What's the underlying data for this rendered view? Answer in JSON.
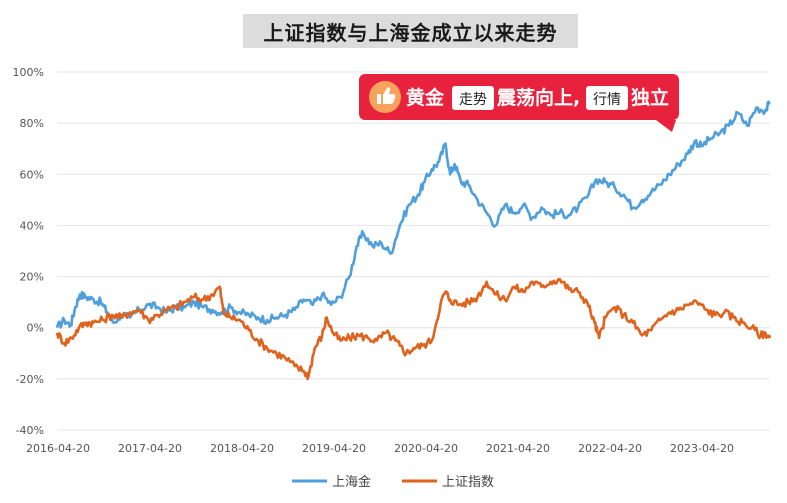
{
  "title": "上证指数与上海金成立以来走势",
  "callout": {
    "part1": "黄金",
    "pill1": "走势",
    "part2": "震荡向上,",
    "pill2": "行情",
    "part3": "独立",
    "colors": {
      "banner": "#e8223d",
      "pill_bg": "#ffffff",
      "icon": "#f7a35c"
    }
  },
  "chart_data": {
    "type": "line",
    "title": "上证指数与上海金成立以来走势",
    "xlabel": "",
    "ylabel": "",
    "ylim": [
      -40,
      100
    ],
    "yticks": [
      "100%",
      "80%",
      "60%",
      "40%",
      "20%",
      "0%",
      "-20%",
      "-40%"
    ],
    "xticks": [
      "2016-04-20",
      "2017-04-20",
      "2018-04-20",
      "2019-04-20",
      "2020-04-20",
      "2021-04-20",
      "2022-04-20",
      "2023-04-20"
    ],
    "x_range": [
      2016.3,
      2024.1
    ],
    "grid": true,
    "legend": "bottom",
    "series": [
      {
        "name": "上海金",
        "color": "#4e9fdc",
        "points": [
          [
            2016.3,
            0
          ],
          [
            2016.38,
            3
          ],
          [
            2016.45,
            1
          ],
          [
            2016.5,
            8
          ],
          [
            2016.55,
            13
          ],
          [
            2016.62,
            12
          ],
          [
            2016.7,
            11
          ],
          [
            2016.78,
            10
          ],
          [
            2016.85,
            6
          ],
          [
            2016.92,
            2
          ],
          [
            2017.0,
            5
          ],
          [
            2017.1,
            4
          ],
          [
            2017.2,
            7
          ],
          [
            2017.3,
            9
          ],
          [
            2017.4,
            8
          ],
          [
            2017.5,
            6
          ],
          [
            2017.6,
            8
          ],
          [
            2017.7,
            8
          ],
          [
            2017.8,
            10
          ],
          [
            2017.9,
            8
          ],
          [
            2018.0,
            7
          ],
          [
            2018.1,
            6
          ],
          [
            2018.2,
            8
          ],
          [
            2018.3,
            6
          ],
          [
            2018.4,
            5
          ],
          [
            2018.5,
            4
          ],
          [
            2018.6,
            3
          ],
          [
            2018.7,
            4
          ],
          [
            2018.8,
            5
          ],
          [
            2018.9,
            7
          ],
          [
            2019.0,
            11
          ],
          [
            2019.1,
            9
          ],
          [
            2019.2,
            13
          ],
          [
            2019.3,
            9
          ],
          [
            2019.4,
            12
          ],
          [
            2019.5,
            20
          ],
          [
            2019.58,
            32
          ],
          [
            2019.65,
            37
          ],
          [
            2019.75,
            32
          ],
          [
            2019.85,
            33
          ],
          [
            2019.95,
            29
          ],
          [
            2020.05,
            40
          ],
          [
            2020.15,
            48
          ],
          [
            2020.25,
            52
          ],
          [
            2020.32,
            57
          ],
          [
            2020.4,
            62
          ],
          [
            2020.48,
            65
          ],
          [
            2020.55,
            72
          ],
          [
            2020.6,
            60
          ],
          [
            2020.65,
            64
          ],
          [
            2020.72,
            57
          ],
          [
            2020.8,
            56
          ],
          [
            2020.9,
            50
          ],
          [
            2021.0,
            45
          ],
          [
            2021.1,
            40
          ],
          [
            2021.2,
            48
          ],
          [
            2021.3,
            45
          ],
          [
            2021.4,
            48
          ],
          [
            2021.5,
            43
          ],
          [
            2021.6,
            47
          ],
          [
            2021.7,
            44
          ],
          [
            2021.8,
            45
          ],
          [
            2021.9,
            44
          ],
          [
            2022.0,
            47
          ],
          [
            2022.1,
            51
          ],
          [
            2022.2,
            58
          ],
          [
            2022.3,
            57
          ],
          [
            2022.4,
            55
          ],
          [
            2022.5,
            52
          ],
          [
            2022.6,
            47
          ],
          [
            2022.7,
            50
          ],
          [
            2022.8,
            53
          ],
          [
            2022.9,
            56
          ],
          [
            2023.0,
            60
          ],
          [
            2023.1,
            64
          ],
          [
            2023.2,
            68
          ],
          [
            2023.28,
            73
          ],
          [
            2023.35,
            71
          ],
          [
            2023.45,
            74
          ],
          [
            2023.55,
            76
          ],
          [
            2023.65,
            79
          ],
          [
            2023.75,
            84
          ],
          [
            2023.85,
            79
          ],
          [
            2023.95,
            86
          ],
          [
            2024.05,
            85
          ],
          [
            2024.1,
            88
          ]
        ]
      },
      {
        "name": "上证指数",
        "color": "#e0621c",
        "points": [
          [
            2016.3,
            -2
          ],
          [
            2016.38,
            -6
          ],
          [
            2016.46,
            -4
          ],
          [
            2016.54,
            0
          ],
          [
            2016.62,
            2
          ],
          [
            2016.7,
            2
          ],
          [
            2016.8,
            3
          ],
          [
            2016.9,
            5
          ],
          [
            2017.0,
            4
          ],
          [
            2017.1,
            6
          ],
          [
            2017.2,
            7
          ],
          [
            2017.3,
            3
          ],
          [
            2017.4,
            5
          ],
          [
            2017.5,
            7
          ],
          [
            2017.6,
            8
          ],
          [
            2017.7,
            10
          ],
          [
            2017.8,
            12
          ],
          [
            2017.9,
            11
          ],
          [
            2018.0,
            13
          ],
          [
            2018.08,
            16
          ],
          [
            2018.12,
            6
          ],
          [
            2018.2,
            4
          ],
          [
            2018.3,
            3
          ],
          [
            2018.4,
            -1
          ],
          [
            2018.5,
            -5
          ],
          [
            2018.6,
            -8
          ],
          [
            2018.7,
            -10
          ],
          [
            2018.8,
            -12
          ],
          [
            2018.9,
            -15
          ],
          [
            2019.0,
            -17
          ],
          [
            2019.05,
            -19
          ],
          [
            2019.12,
            -8
          ],
          [
            2019.2,
            -3
          ],
          [
            2019.25,
            4
          ],
          [
            2019.32,
            -2
          ],
          [
            2019.4,
            -5
          ],
          [
            2019.5,
            -4
          ],
          [
            2019.6,
            -3
          ],
          [
            2019.7,
            -4
          ],
          [
            2019.8,
            -5
          ],
          [
            2019.9,
            -2
          ],
          [
            2020.0,
            -5
          ],
          [
            2020.05,
            -7
          ],
          [
            2020.12,
            -10
          ],
          [
            2020.2,
            -8
          ],
          [
            2020.3,
            -7
          ],
          [
            2020.4,
            -5
          ],
          [
            2020.5,
            10
          ],
          [
            2020.55,
            14
          ],
          [
            2020.6,
            11
          ],
          [
            2020.7,
            9
          ],
          [
            2020.8,
            10
          ],
          [
            2020.9,
            12
          ],
          [
            2021.0,
            18
          ],
          [
            2021.1,
            13
          ],
          [
            2021.2,
            11
          ],
          [
            2021.3,
            16
          ],
          [
            2021.4,
            14
          ],
          [
            2021.5,
            18
          ],
          [
            2021.6,
            16
          ],
          [
            2021.7,
            18
          ],
          [
            2021.8,
            19
          ],
          [
            2021.9,
            15
          ],
          [
            2022.0,
            14
          ],
          [
            2022.1,
            10
          ],
          [
            2022.18,
            2
          ],
          [
            2022.23,
            -4
          ],
          [
            2022.3,
            4
          ],
          [
            2022.4,
            8
          ],
          [
            2022.5,
            5
          ],
          [
            2022.6,
            2
          ],
          [
            2022.7,
            -3
          ],
          [
            2022.8,
            -1
          ],
          [
            2022.9,
            3
          ],
          [
            2023.0,
            6
          ],
          [
            2023.1,
            7
          ],
          [
            2023.2,
            9
          ],
          [
            2023.3,
            10
          ],
          [
            2023.4,
            7
          ],
          [
            2023.5,
            5
          ],
          [
            2023.6,
            6
          ],
          [
            2023.7,
            4
          ],
          [
            2023.8,
            2
          ],
          [
            2023.9,
            0
          ],
          [
            2024.0,
            -3
          ],
          [
            2024.05,
            -2
          ],
          [
            2024.1,
            -4
          ]
        ]
      }
    ]
  }
}
